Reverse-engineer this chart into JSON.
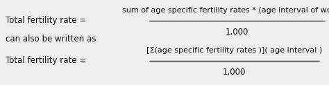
{
  "bg_color": "#eeeeee",
  "line1_left": "Total fertility rate = ",
  "line1_numerator": "sum of age specific fertility rates * (age interval of women)",
  "line1_denominator": "1,000",
  "line2": "can also be written as",
  "line3_left": "Total fertility rate = ",
  "line3_numerator": "[Σ(age specific fertility rates )]( age interval )",
  "line3_denominator": "1,000",
  "font_size": 8.5,
  "text_color": "#111111",
  "line_color": "#111111"
}
